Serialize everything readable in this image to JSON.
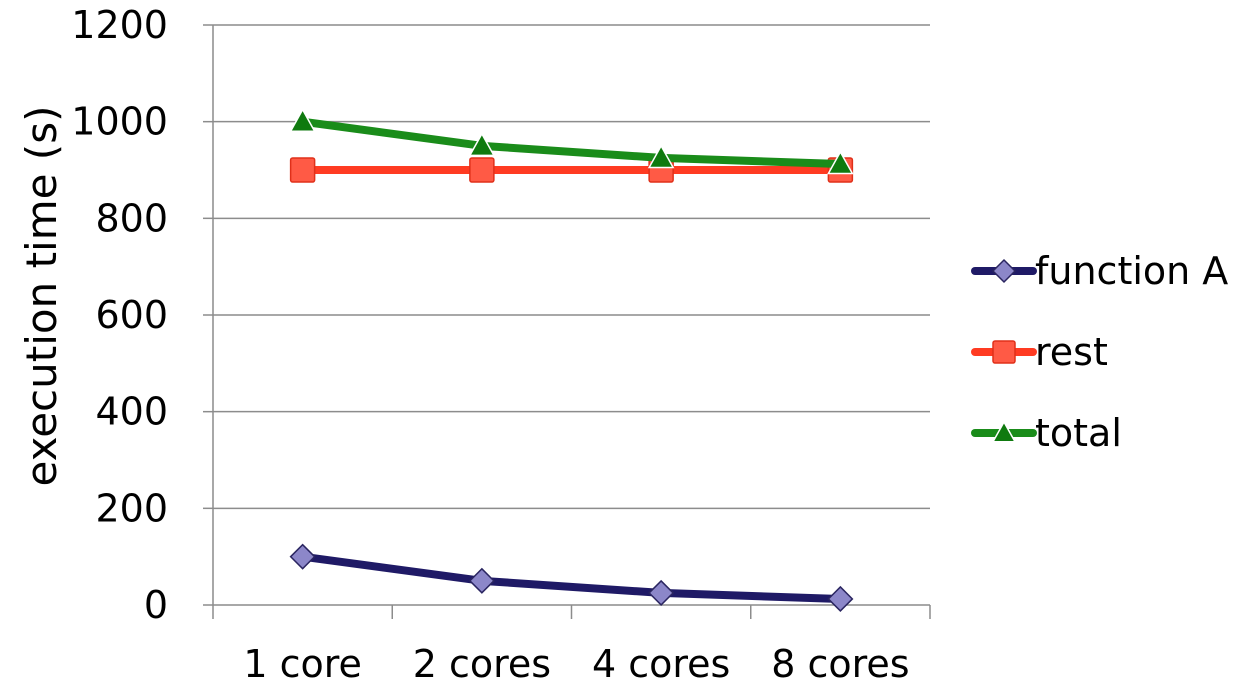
{
  "chart_data": {
    "type": "line",
    "title": "",
    "xlabel": "",
    "ylabel": "execution time (s)",
    "categories": [
      "1 core",
      "2 cores",
      "4 cores",
      "8 cores"
    ],
    "ylim": [
      0,
      1200
    ],
    "yticks": [
      0,
      200,
      400,
      600,
      800,
      1000,
      1200
    ],
    "grid": "horizontal",
    "legend_position": "right",
    "series": [
      {
        "name": "function A",
        "values": [
          100,
          50,
          25,
          12.5
        ],
        "color": "#1f1a66",
        "marker": "diamond",
        "marker_fill": "#8c87c9"
      },
      {
        "name": "rest",
        "values": [
          900,
          900,
          900,
          900
        ],
        "color": "#ff3b22",
        "marker": "square",
        "marker_fill": "#ff5a45"
      },
      {
        "name": "total",
        "values": [
          1000,
          950,
          925,
          912.5
        ],
        "color": "#1a8c1a",
        "marker": "triangle",
        "marker_fill": "#0f7a0f"
      }
    ]
  }
}
